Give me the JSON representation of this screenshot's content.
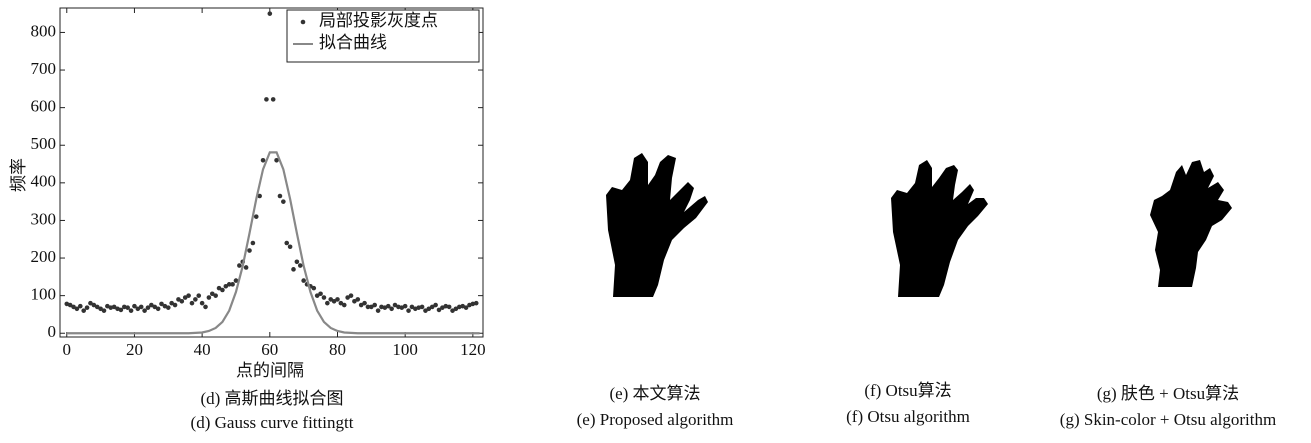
{
  "chart_data": {
    "type": "scatter",
    "x_label": "点的间隔",
    "y_label": "频率",
    "caption_zh": "(d) 高斯曲线拟合图",
    "caption_en": "(d) Gauss curve fittingtt",
    "xlim": [
      -2,
      123
    ],
    "ylim": [
      -10,
      865
    ],
    "xticks": [
      0,
      20,
      40,
      60,
      80,
      100,
      120
    ],
    "yticks": [
      0,
      100,
      200,
      300,
      400,
      500,
      600,
      700,
      800
    ],
    "legend": "upper right",
    "series": [
      {
        "name": "局部投影灰度点",
        "type": "scatter",
        "color": "#333333",
        "x": [
          0,
          1,
          2,
          3,
          4,
          5,
          6,
          7,
          8,
          9,
          10,
          11,
          12,
          13,
          14,
          15,
          16,
          17,
          18,
          19,
          20,
          21,
          22,
          23,
          24,
          25,
          26,
          27,
          28,
          29,
          30,
          31,
          32,
          33,
          34,
          35,
          36,
          37,
          38,
          39,
          40,
          41,
          42,
          43,
          44,
          45,
          46,
          47,
          48,
          49,
          50,
          51,
          52,
          53,
          54,
          55,
          56,
          57,
          58,
          59,
          60,
          61,
          62,
          63,
          64,
          65,
          66,
          67,
          68,
          69,
          70,
          71,
          72,
          73,
          74,
          75,
          76,
          77,
          78,
          79,
          80,
          81,
          82,
          83,
          84,
          85,
          86,
          87,
          88,
          89,
          90,
          91,
          92,
          93,
          94,
          95,
          96,
          97,
          98,
          99,
          100,
          101,
          102,
          103,
          104,
          105,
          106,
          107,
          108,
          109,
          110,
          111,
          112,
          113,
          114,
          115,
          116,
          117,
          118,
          119,
          120,
          121
        ],
        "values": [
          78,
          75,
          70,
          65,
          72,
          60,
          68,
          80,
          75,
          70,
          65,
          60,
          72,
          68,
          70,
          65,
          62,
          70,
          68,
          60,
          72,
          65,
          70,
          60,
          68,
          75,
          70,
          65,
          78,
          72,
          68,
          80,
          75,
          90,
          85,
          95,
          100,
          80,
          90,
          100,
          80,
          70,
          95,
          105,
          100,
          120,
          115,
          125,
          130,
          130,
          140,
          180,
          190,
          175,
          220,
          240,
          310,
          365,
          460,
          622,
          850,
          622,
          460,
          365,
          350,
          240,
          230,
          170,
          190,
          180,
          140,
          130,
          125,
          120,
          100,
          105,
          95,
          80,
          90,
          85,
          90,
          80,
          75,
          95,
          100,
          85,
          90,
          75,
          80,
          70,
          70,
          75,
          60,
          70,
          68,
          72,
          65,
          75,
          70,
          68,
          72,
          60,
          70,
          65,
          68,
          70,
          60,
          65,
          70,
          75,
          62,
          68,
          72,
          70,
          60,
          65,
          70,
          72,
          68,
          75,
          78,
          80
        ]
      },
      {
        "name": "拟合曲线",
        "type": "line",
        "color": "#888888",
        "x": [
          0,
          2,
          4,
          6,
          8,
          10,
          12,
          14,
          16,
          18,
          20,
          22,
          24,
          26,
          28,
          30,
          32,
          34,
          36,
          38,
          40,
          42,
          44,
          46,
          48,
          50,
          52,
          54,
          56,
          58,
          60,
          62,
          64,
          66,
          68,
          70,
          72,
          74,
          76,
          78,
          80,
          82,
          84,
          86,
          88,
          90,
          92,
          94,
          96,
          98,
          100,
          102,
          104,
          106,
          108,
          110,
          112,
          114,
          116,
          118,
          120,
          122
        ],
        "values": [
          0,
          0,
          0,
          0,
          0,
          0,
          0,
          0,
          0,
          0,
          0,
          0,
          0,
          0,
          0,
          0,
          0,
          0,
          0,
          1,
          2,
          6,
          14,
          30,
          60,
          110,
          179,
          266,
          357,
          436,
          481,
          481,
          436,
          357,
          266,
          179,
          110,
          60,
          30,
          14,
          6,
          2,
          1,
          0,
          0,
          0,
          0,
          0,
          0,
          0,
          0,
          0,
          0,
          0,
          0,
          0,
          0,
          0,
          0,
          0,
          0,
          0
        ]
      }
    ]
  },
  "images": [
    {
      "caption_zh": "(e) 本文算法",
      "caption_en": "(e) Proposed algorithm"
    },
    {
      "caption_zh": "(f) Otsu算法",
      "caption_en": "(f) Otsu algorithm"
    },
    {
      "caption_zh": "(g) 肤色 + Otsu算法",
      "caption_en": "(g) Skin-color + Otsu algorithm"
    }
  ]
}
